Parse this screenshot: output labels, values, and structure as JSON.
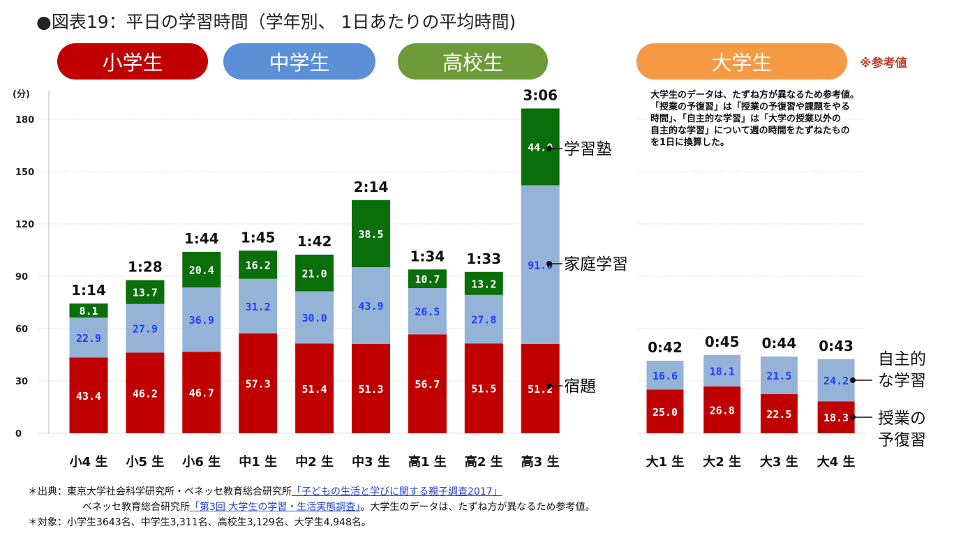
{
  "title": "●図表19：平日の学習時間（学年別、 1日あたりの平均時間)",
  "categories": [
    {
      "label": "小学生",
      "color": "#c00000"
    },
    {
      "label": "中学生",
      "color": "#5b8fd6"
    },
    {
      "label": "高校生",
      "color": "#6e9b3a"
    },
    {
      "label": "大学生",
      "color": "#f59a43"
    }
  ],
  "reference_label": "※参考値",
  "university_note": [
    "大学生のデータは、たずね方が異なるため参考値。",
    "「授業の予復習」は「授業の予復習や課題をやる",
    "時間」、「自主的な学習」は「大学の授業以外の",
    "自主的な学習」について週の時間をたずねたもの",
    "を1日に換算した。"
  ],
  "chart_data": [
    {
      "type": "bar",
      "stacked": true,
      "ylabel": "(分)",
      "ylim": [
        0,
        190
      ],
      "yticks": [
        0,
        30,
        60,
        90,
        120,
        150,
        180
      ],
      "grid": true,
      "categories": [
        "小4 生",
        "小5 生",
        "小6 生",
        "中1 生",
        "中2 生",
        "中3 生",
        "高1 生",
        "高2 生",
        "高3 生"
      ],
      "totals": [
        "1:14",
        "1:28",
        "1:44",
        "1:45",
        "1:42",
        "2:14",
        "1:34",
        "1:33",
        "3:06"
      ],
      "series": [
        {
          "name": "宿題",
          "color": "#c00000",
          "label_color": "#ffffff",
          "values": [
            43.4,
            46.2,
            46.7,
            57.3,
            51.4,
            51.3,
            56.7,
            51.5,
            51.2
          ]
        },
        {
          "name": "家庭学習",
          "color": "#95b3d7",
          "label_color": "#1f3fff",
          "values": [
            22.9,
            27.9,
            36.9,
            31.2,
            30.0,
            43.9,
            26.5,
            27.8,
            91.0
          ]
        },
        {
          "name": "学習塾",
          "color": "#0a6e0a",
          "label_color": "#ffffff",
          "values": [
            8.1,
            13.7,
            20.4,
            16.2,
            21.0,
            38.5,
            10.7,
            13.2,
            44.0
          ]
        }
      ]
    },
    {
      "type": "bar",
      "stacked": true,
      "ylim": [
        0,
        190
      ],
      "grid": true,
      "categories": [
        "大1 生",
        "大2 生",
        "大3 生",
        "大4 生"
      ],
      "totals": [
        "0:42",
        "0:45",
        "0:44",
        "0:43"
      ],
      "series": [
        {
          "name": "授業の予復習",
          "color": "#c00000",
          "label_color": "#ffffff",
          "values": [
            25.0,
            26.8,
            22.5,
            18.3
          ]
        },
        {
          "name": "自主的な学習",
          "color": "#95b3d7",
          "label_color": "#1f3fff",
          "values": [
            16.6,
            18.1,
            21.5,
            24.2
          ]
        }
      ]
    }
  ],
  "legend_right": {
    "juku": "学習塾",
    "katei": "家庭学習",
    "shukudai": "宿題",
    "jishu_1": "自主的",
    "jishu_2": "な学習",
    "jugyo_1": "授業の",
    "jugyo_2": "予復習"
  },
  "footer": {
    "line1_prefix": "＊出典：東京大学社会科学研究所・ベネッセ教育総合研究所",
    "line1_link": "「子どもの生活と学びに関する親子調査2017」",
    "line2_prefix": "ベネッセ教育総合研究所",
    "line2_link": "「第3回 大学生の学習・生活実態調査」",
    "line2_suffix": "。大学生のデータは、たずね方が異なるため参考値。",
    "line3": "＊対象：小学生3643名、中学生3,311名、高校生3,129名、大学生4,948名。"
  }
}
